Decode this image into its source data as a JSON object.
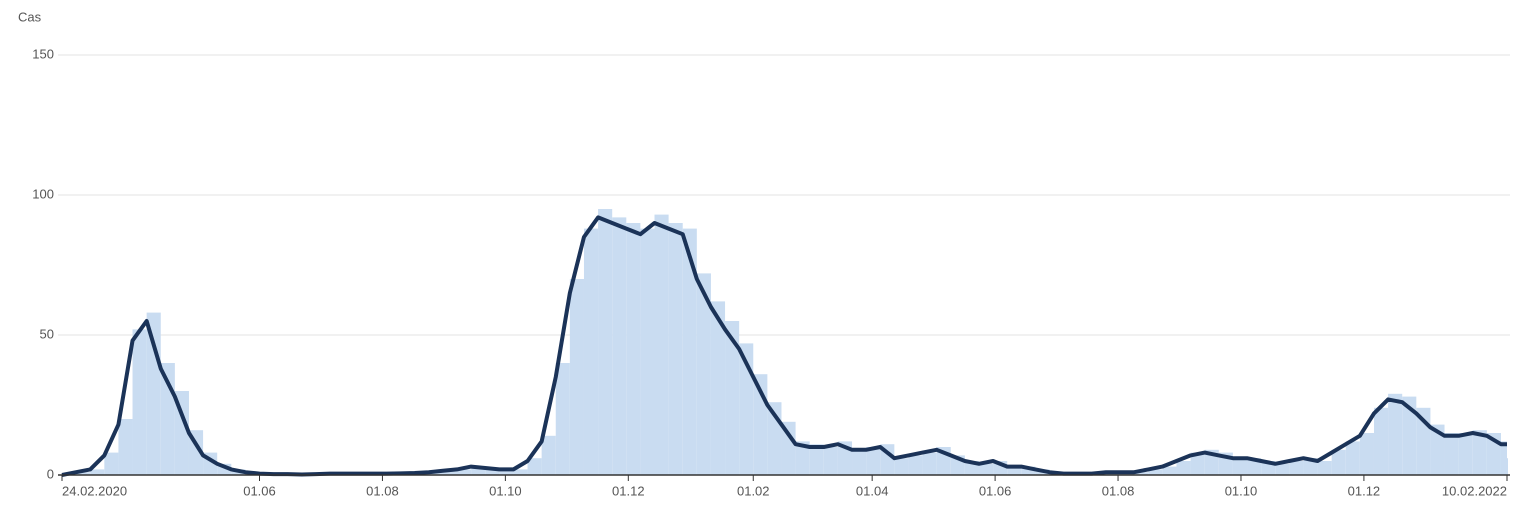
{
  "chart_data": {
    "type": "bar",
    "ylabel": "Cas",
    "x": [
      0,
      7,
      14,
      21,
      28,
      35,
      42,
      49,
      56,
      63,
      70,
      77,
      84,
      91,
      98,
      105,
      112,
      119,
      126,
      133,
      140,
      147,
      154,
      161,
      168,
      175,
      182,
      189,
      196,
      203,
      210,
      217,
      224,
      231,
      238,
      245,
      252,
      259,
      266,
      273,
      280,
      287,
      294,
      301,
      308,
      315,
      322,
      329,
      336,
      343,
      350,
      357,
      364,
      371,
      378,
      385,
      392,
      399,
      406,
      413,
      420,
      427,
      434,
      441,
      448,
      455,
      462,
      469,
      476,
      483,
      490,
      497,
      504,
      511,
      518,
      525,
      532,
      539,
      546,
      553,
      560,
      567,
      574,
      581,
      588,
      595,
      602,
      609,
      616,
      623,
      630,
      637,
      644,
      651,
      658,
      665,
      672,
      679,
      686,
      693,
      700,
      707,
      714,
      717
    ],
    "series": [
      {
        "type": "bar",
        "color": "#c9dcf1",
        "values": [
          0,
          1,
          2,
          8,
          20,
          52,
          58,
          40,
          30,
          16,
          8,
          4,
          2,
          1,
          0.5,
          0.3,
          0.3,
          0.2,
          0.3,
          0.5,
          0.5,
          0.5,
          0.5,
          0.5,
          0.6,
          0.7,
          1,
          1.5,
          2,
          3,
          2.5,
          2,
          2,
          6,
          14,
          40,
          70,
          88,
          95,
          92,
          90,
          88,
          93,
          90,
          88,
          72,
          62,
          55,
          47,
          36,
          26,
          19,
          12,
          11,
          10,
          12,
          9,
          10,
          11,
          6,
          7,
          8,
          10,
          7,
          5,
          4,
          5,
          3,
          3,
          2,
          1,
          0.5,
          0.5,
          0.5,
          1,
          1,
          1,
          2,
          3,
          5,
          8,
          9,
          8,
          6,
          6,
          5,
          4,
          5,
          6,
          5,
          9,
          12,
          15,
          24,
          29,
          28,
          24,
          18,
          15,
          15,
          16,
          15,
          12,
          6
        ]
      },
      {
        "type": "line",
        "color": "#1b3358",
        "values": [
          0,
          1,
          2,
          7,
          18,
          48,
          55,
          38,
          28,
          15,
          7,
          4,
          2,
          1,
          0.5,
          0.3,
          0.3,
          0.2,
          0.3,
          0.5,
          0.5,
          0.5,
          0.5,
          0.5,
          0.6,
          0.7,
          1,
          1.5,
          2,
          3,
          2.5,
          2,
          2,
          5,
          12,
          35,
          65,
          85,
          92,
          90,
          88,
          86,
          90,
          88,
          86,
          70,
          60,
          52,
          45,
          35,
          25,
          18,
          11,
          10,
          10,
          11,
          9,
          9,
          10,
          6,
          7,
          8,
          9,
          7,
          5,
          4,
          5,
          3,
          3,
          2,
          1,
          0.5,
          0.5,
          0.5,
          1,
          1,
          1,
          2,
          3,
          5,
          7,
          8,
          7,
          6,
          6,
          5,
          4,
          5,
          6,
          5,
          8,
          11,
          14,
          22,
          27,
          26,
          22,
          17,
          14,
          14,
          15,
          14,
          11,
          11
        ]
      }
    ],
    "xlim": [
      0,
      717
    ],
    "xticks": [
      {
        "value": 0,
        "label": "24.02.2020"
      },
      {
        "value": 98,
        "label": "01.06"
      },
      {
        "value": 159,
        "label": "01.08"
      },
      {
        "value": 220,
        "label": "01.10"
      },
      {
        "value": 281,
        "label": "01.12"
      },
      {
        "value": 343,
        "label": "01.02"
      },
      {
        "value": 402,
        "label": "01.04"
      },
      {
        "value": 463,
        "label": "01.06"
      },
      {
        "value": 524,
        "label": "01.08"
      },
      {
        "value": 585,
        "label": "01.10"
      },
      {
        "value": 646,
        "label": "01.12"
      },
      {
        "value": 717,
        "label": "10.02.2022"
      }
    ],
    "ylim": [
      0,
      150
    ],
    "yticks": [
      0,
      50,
      100,
      150
    ],
    "grid": true
  }
}
